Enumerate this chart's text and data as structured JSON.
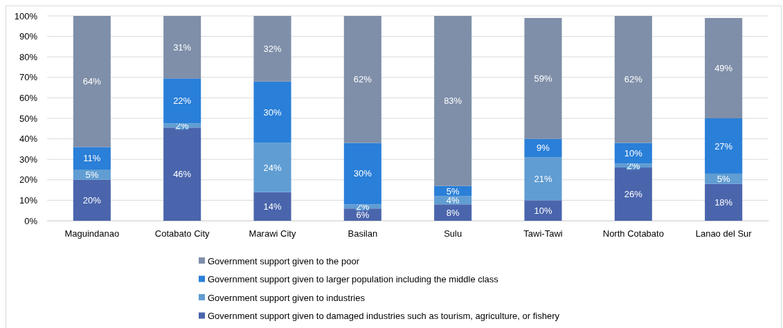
{
  "chart_data": {
    "type": "bar",
    "stacked": true,
    "categories": [
      "Maguindanao",
      "Cotabato City",
      "Marawi City",
      "Basilan",
      "Sulu",
      "Tawi-Tawi",
      "North Cotabato",
      "Lanao del Sur"
    ],
    "series": [
      {
        "name": "Government support given to damaged industries such as tourism, agriculture, or fishery",
        "color": "#4a65ac",
        "values": [
          20,
          45.5,
          14,
          6,
          8,
          10,
          26,
          18
        ],
        "value_labels": [
          "20%",
          "46%",
          "14%",
          "6%",
          "8%",
          "10%",
          "26%",
          "18%"
        ]
      },
      {
        "name": "Government support given to industries",
        "color": "#609dd2",
        "values": [
          5,
          2,
          24,
          2,
          4,
          21,
          2,
          5
        ],
        "value_labels": [
          "5%",
          "2%",
          "24%",
          "2%",
          "4%",
          "21%",
          "2%",
          "5%"
        ]
      },
      {
        "name": "Government support given to larger population including the middle class",
        "color": "#2a7fd8",
        "values": [
          11,
          22,
          30,
          30,
          5,
          9,
          10,
          27
        ],
        "value_labels": [
          "11%",
          "22%",
          "30%",
          "30%",
          "5%",
          "9%",
          "10%",
          "27%"
        ]
      },
      {
        "name": "Government support given to the poor",
        "color": "#7f8fa9",
        "values": [
          64,
          30.5,
          32,
          62,
          83,
          59,
          62,
          49
        ],
        "value_labels": [
          "64%",
          "31%",
          "32%",
          "62%",
          "83%",
          "59%",
          "62%",
          "49%"
        ]
      }
    ],
    "ylim": [
      0,
      100
    ],
    "yticks": [
      {
        "value": 0,
        "label": "0%"
      },
      {
        "value": 10,
        "label": "10%"
      },
      {
        "value": 20,
        "label": "20%"
      },
      {
        "value": 30,
        "label": "30%"
      },
      {
        "value": 40,
        "label": "40%"
      },
      {
        "value": 50,
        "label": "50%"
      },
      {
        "value": 60,
        "label": "60%"
      },
      {
        "value": 70,
        "label": "70%"
      },
      {
        "value": 80,
        "label": "80%"
      },
      {
        "value": 90,
        "label": "90%"
      },
      {
        "value": 100,
        "label": "100%"
      }
    ],
    "grid": "y",
    "legend": "bottom"
  }
}
